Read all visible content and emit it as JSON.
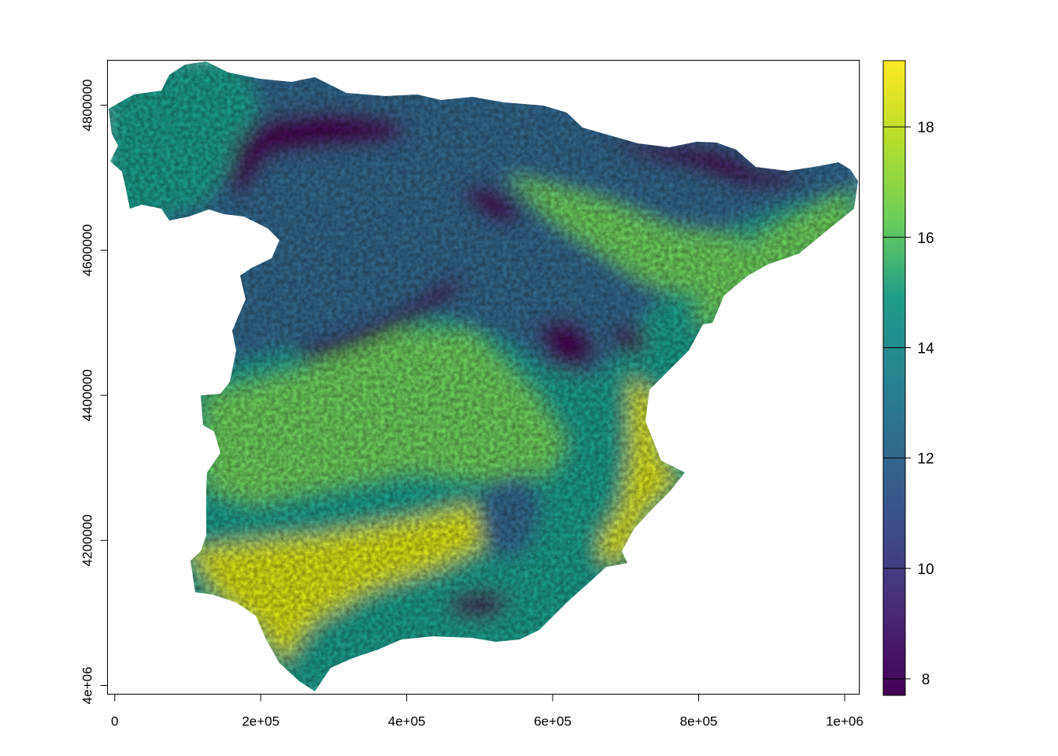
{
  "map": {
    "x_axis": {
      "range": [
        -10000,
        1020000
      ],
      "ticks": [
        0,
        200000,
        400000,
        600000,
        800000,
        1000000
      ],
      "tick_labels": [
        "0",
        "2e+05",
        "4e+05",
        "6e+05",
        "8e+05",
        "1e+06"
      ]
    },
    "y_axis": {
      "range": [
        3988000,
        4862000
      ],
      "ticks": [
        4000000,
        4200000,
        4400000,
        4600000,
        4800000
      ],
      "tick_labels": [
        "4e+06",
        "4200000",
        "4400000",
        "4600000",
        "4800000"
      ]
    },
    "legend": {
      "placement": "right",
      "range": [
        7.7,
        19.2
      ],
      "ticks": [
        8,
        10,
        12,
        14,
        16,
        18
      ],
      "tick_labels": [
        "8",
        "10",
        "12",
        "14",
        "16",
        "18"
      ],
      "palette": [
        "#440154",
        "#482777",
        "#3f4a8a",
        "#31678e",
        "#26838f",
        "#1f9d8a",
        "#6cce5a",
        "#b6de2b",
        "#fee825"
      ]
    },
    "colors": {
      "cold": "#440154",
      "cool": "#31678e",
      "mid": "#1f9d8a",
      "warm": "#6cce5a",
      "hot": "#d8e219"
    }
  }
}
